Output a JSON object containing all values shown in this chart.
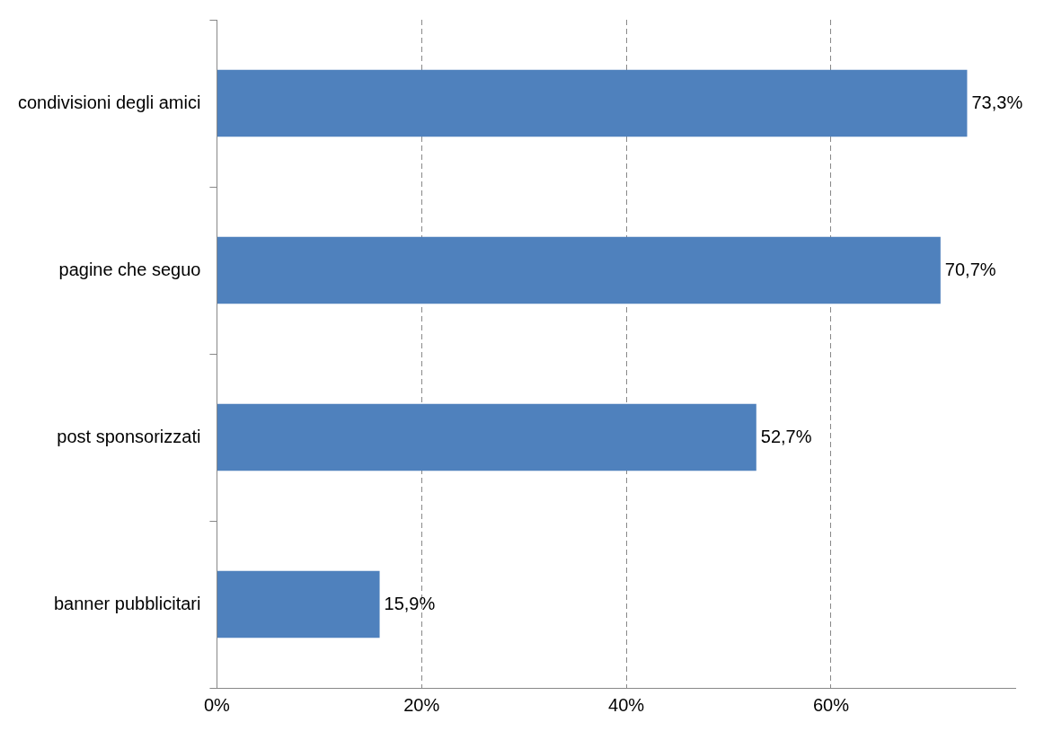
{
  "chart_data": {
    "type": "bar",
    "orientation": "horizontal",
    "categories": [
      "condivisioni degli amici",
      "pagine che seguo",
      "post sponsorizzati",
      "banner pubblicitari"
    ],
    "values": [
      73.3,
      70.7,
      52.7,
      15.9
    ],
    "value_labels": [
      "73,3%",
      "70,7%",
      "52,7%",
      "15,9%"
    ],
    "color": "#4f81bd",
    "xlim": [
      0,
      78
    ],
    "xticks": [
      {
        "value": 0,
        "label": "0%"
      },
      {
        "value": 20,
        "label": "20%"
      },
      {
        "value": 40,
        "label": "40%"
      },
      {
        "value": 60,
        "label": "60%"
      }
    ],
    "grid": "x",
    "legend": false
  }
}
